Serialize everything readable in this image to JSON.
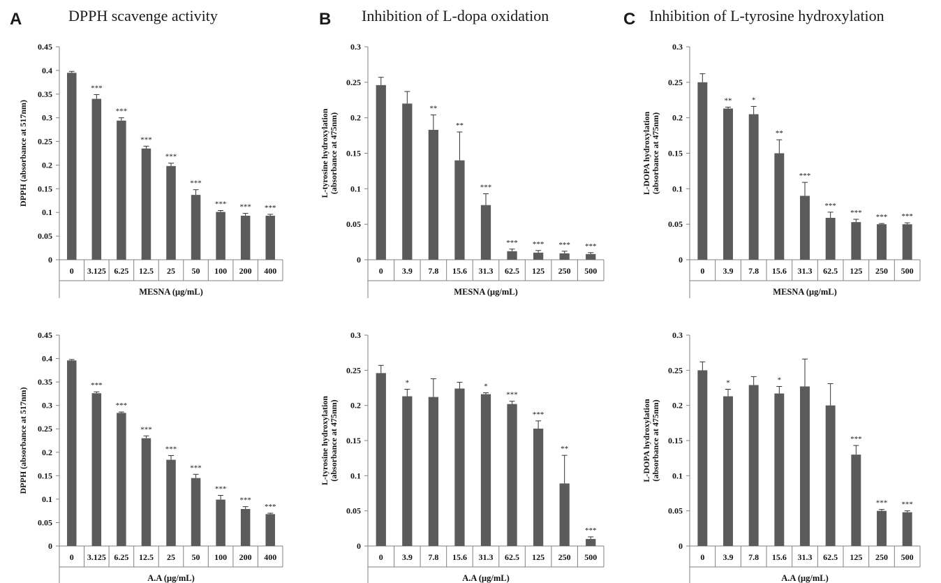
{
  "panels": [
    {
      "letter": "A",
      "title": "DPPH scavenge activity"
    },
    {
      "letter": "B",
      "title": "Inhibition of L-dopa oxidation"
    },
    {
      "letter": "C",
      "title": "Inhibition of L-tyrosine hydroxylation"
    }
  ],
  "colors": {
    "bar": "#5b5b5b",
    "axis": "#808080",
    "text": "#111111"
  },
  "chart_data": [
    {
      "type": "bar",
      "title": "",
      "xlabel": "MESNA (μg/mL)",
      "ylabel": [
        "DPPH (absorbance at 517nm)"
      ],
      "ylim": [
        0,
        0.45
      ],
      "yticks": [
        "0",
        "0.05",
        "0.1",
        "0.15",
        "0.2",
        "0.25",
        "0.3",
        "0.35",
        "0.4",
        "0.45"
      ],
      "categories": [
        "0",
        "3.125",
        "6.25",
        "12.5",
        "25",
        "50",
        "100",
        "200",
        "400"
      ],
      "values": [
        0.395,
        0.34,
        0.294,
        0.235,
        0.198,
        0.137,
        0.101,
        0.093,
        0.093
      ],
      "errors": [
        0.003,
        0.009,
        0.006,
        0.005,
        0.006,
        0.011,
        0.003,
        0.005,
        0.003
      ],
      "significance": [
        "",
        "***",
        "***",
        "***",
        "***",
        "***",
        "***",
        "***",
        "***"
      ]
    },
    {
      "type": "bar",
      "title": "",
      "xlabel": "MESNA (μg/mL)",
      "ylabel": [
        "L-tyrosine hydroxylation",
        "(absorbance at 475nm)"
      ],
      "ylim": [
        0,
        0.3
      ],
      "yticks": [
        "0",
        "0.05",
        "0.1",
        "0.15",
        "0.2",
        "0.25",
        "0.3"
      ],
      "categories": [
        "0",
        "3.9",
        "7.8",
        "15.6",
        "31.3",
        "62.5",
        "125",
        "250",
        "500"
      ],
      "values": [
        0.246,
        0.22,
        0.183,
        0.14,
        0.077,
        0.012,
        0.01,
        0.009,
        0.008
      ],
      "errors": [
        0.011,
        0.017,
        0.021,
        0.04,
        0.016,
        0.003,
        0.003,
        0.003,
        0.002
      ],
      "significance": [
        "",
        "",
        "**",
        "**",
        "***",
        "***",
        "***",
        "***",
        "***"
      ]
    },
    {
      "type": "bar",
      "title": "",
      "xlabel": "MESNA (μg/mL)",
      "ylabel": [
        "L-DOPA hydroxylation",
        "(absorbance at 475nm)"
      ],
      "ylim": [
        0,
        0.3
      ],
      "yticks": [
        "0",
        "0.05",
        "0.1",
        "0.15",
        "0.2",
        "0.25",
        "0.3"
      ],
      "categories": [
        "0",
        "3.9",
        "7.8",
        "15.6",
        "31.3",
        "62.5",
        "125",
        "250",
        "500"
      ],
      "values": [
        0.25,
        0.213,
        0.205,
        0.15,
        0.09,
        0.059,
        0.053,
        0.05,
        0.05
      ],
      "errors": [
        0.012,
        0.002,
        0.011,
        0.019,
        0.019,
        0.008,
        0.004,
        0.001,
        0.002
      ],
      "significance": [
        "",
        "**",
        "*",
        "**",
        "***",
        "***",
        "***",
        "***",
        "***"
      ]
    },
    {
      "type": "bar",
      "title": "",
      "xlabel": "A.A (μg/mL)",
      "ylabel": [
        "DPPH (absorbance at 517nm)"
      ],
      "ylim": [
        0,
        0.45
      ],
      "yticks": [
        "0",
        "0.05",
        "0.1",
        "0.15",
        "0.2",
        "0.25",
        "0.3",
        "0.35",
        "0.4",
        "0.45"
      ],
      "categories": [
        "0",
        "3.125",
        "6.25",
        "12.5",
        "25",
        "50",
        "100",
        "200",
        "400"
      ],
      "values": [
        0.396,
        0.326,
        0.284,
        0.23,
        0.184,
        0.145,
        0.099,
        0.079,
        0.068
      ],
      "errors": [
        0.002,
        0.003,
        0.002,
        0.005,
        0.009,
        0.008,
        0.009,
        0.005,
        0.002
      ],
      "significance": [
        "",
        "***",
        "***",
        "***",
        "***",
        "***",
        "***",
        "***",
        "***"
      ]
    },
    {
      "type": "bar",
      "title": "",
      "xlabel": "A.A (μg/mL)",
      "ylabel": [
        "L-tyrosine hydroxylation",
        "(absorbance at 475nm)"
      ],
      "ylim": [
        0,
        0.3
      ],
      "yticks": [
        "0",
        "0.05",
        "0.1",
        "0.15",
        "0.2",
        "0.25",
        "0.3"
      ],
      "categories": [
        "0",
        "3.9",
        "7.8",
        "15.6",
        "31.3",
        "62.5",
        "125",
        "250",
        "500"
      ],
      "values": [
        0.246,
        0.213,
        0.212,
        0.224,
        0.216,
        0.202,
        0.167,
        0.089,
        0.01
      ],
      "errors": [
        0.011,
        0.01,
        0.026,
        0.009,
        0.002,
        0.004,
        0.011,
        0.04,
        0.003
      ],
      "significance": [
        "",
        "*",
        "",
        "",
        "*",
        "***",
        "***",
        "**",
        "***"
      ]
    },
    {
      "type": "bar",
      "title": "",
      "xlabel": "A.A (μg/mL)",
      "ylabel": [
        "L-DOPA hydroxylation",
        "(absorbance at 475nm)"
      ],
      "ylim": [
        0,
        0.3
      ],
      "yticks": [
        "0",
        "0.05",
        "0.1",
        "0.15",
        "0.2",
        "0.25",
        "0.3"
      ],
      "categories": [
        "0",
        "3.9",
        "7.8",
        "15.6",
        "31.3",
        "62.5",
        "125",
        "250",
        "500"
      ],
      "values": [
        0.25,
        0.213,
        0.229,
        0.217,
        0.227,
        0.2,
        0.13,
        0.05,
        0.048
      ],
      "errors": [
        0.012,
        0.01,
        0.012,
        0.01,
        0.039,
        0.031,
        0.013,
        0.002,
        0.002
      ],
      "significance": [
        "",
        "*",
        "",
        "*",
        "",
        "",
        "***",
        "***",
        "***"
      ]
    }
  ]
}
